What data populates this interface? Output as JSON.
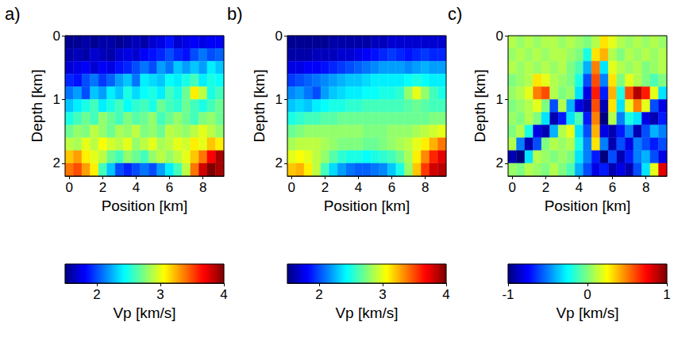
{
  "chart_data": [
    {
      "type": "heatmap",
      "title": "a)",
      "x_label": "Position [km]",
      "y_label": "Depth [km]",
      "xlim": [
        -0.25,
        9.25
      ],
      "xticks": [
        0,
        2,
        4,
        6,
        8
      ],
      "ylim": [
        0,
        2.2
      ],
      "yticks": [
        0,
        1,
        2
      ],
      "x": [
        0,
        0.5,
        1,
        1.5,
        2,
        2.5,
        3,
        3.5,
        4,
        4.5,
        5,
        5.5,
        6,
        6.5,
        7,
        7.5,
        8,
        8.5,
        9
      ],
      "y": [
        0.1,
        0.3,
        0.5,
        0.7,
        0.9,
        1.1,
        1.3,
        1.5,
        1.7,
        1.9,
        2.1
      ],
      "values": [
        [
          1.55,
          1.55,
          1.6,
          1.55,
          1.6,
          1.6,
          1.55,
          1.6,
          1.65,
          1.6,
          1.7,
          1.75,
          1.85,
          1.7,
          1.75,
          1.8,
          1.75,
          1.8,
          1.8
        ],
        [
          1.6,
          1.65,
          1.6,
          1.7,
          1.65,
          1.6,
          1.7,
          1.75,
          1.7,
          1.8,
          1.85,
          1.9,
          2.0,
          1.9,
          1.85,
          2.0,
          2.1,
          2.0,
          2.05
        ],
        [
          1.7,
          1.75,
          1.8,
          1.7,
          1.8,
          1.75,
          1.85,
          1.9,
          2.0,
          2.1,
          2.0,
          2.2,
          2.1,
          2.3,
          2.2,
          2.3,
          2.2,
          2.4,
          2.3
        ],
        [
          1.9,
          1.85,
          2.0,
          2.1,
          1.95,
          2.05,
          2.2,
          2.3,
          2.1,
          2.4,
          2.35,
          2.3,
          2.45,
          2.4,
          2.5,
          2.6,
          2.4,
          2.5,
          2.45
        ],
        [
          2.1,
          2.2,
          2.0,
          2.3,
          2.2,
          2.4,
          2.3,
          2.5,
          2.35,
          2.45,
          2.5,
          2.4,
          2.6,
          2.5,
          2.7,
          3.1,
          2.9,
          2.5,
          2.6
        ],
        [
          2.3,
          2.4,
          2.5,
          2.6,
          2.4,
          2.5,
          2.6,
          2.45,
          2.55,
          2.6,
          2.5,
          2.7,
          2.6,
          2.55,
          2.7,
          2.6,
          2.5,
          2.6,
          2.7
        ],
        [
          2.5,
          2.6,
          2.7,
          2.6,
          2.8,
          2.7,
          2.6,
          2.75,
          2.65,
          2.7,
          2.8,
          2.6,
          2.7,
          2.8,
          2.7,
          2.6,
          2.75,
          2.8,
          2.7
        ],
        [
          2.7,
          2.8,
          2.75,
          2.9,
          2.8,
          2.7,
          2.85,
          2.8,
          2.9,
          2.75,
          2.8,
          2.7,
          2.9,
          2.85,
          2.8,
          2.9,
          3.0,
          2.9,
          2.8
        ],
        [
          2.9,
          2.85,
          3.0,
          2.9,
          3.05,
          2.95,
          2.9,
          3.0,
          2.8,
          2.9,
          3.0,
          2.85,
          2.9,
          3.0,
          2.95,
          3.1,
          3.0,
          3.2,
          3.1
        ],
        [
          3.2,
          3.3,
          3.1,
          3.0,
          2.9,
          2.7,
          2.6,
          2.8,
          2.7,
          2.6,
          2.8,
          2.9,
          2.8,
          2.9,
          3.0,
          3.2,
          3.4,
          3.7,
          3.9
        ],
        [
          3.4,
          3.5,
          3.3,
          3.1,
          2.6,
          2.3,
          2.0,
          1.9,
          2.0,
          2.1,
          2.0,
          2.2,
          2.4,
          2.6,
          2.9,
          3.4,
          3.8,
          4.0,
          3.9
        ]
      ],
      "colorbar": {
        "label": "Vp [km/s]",
        "range": [
          1.5,
          4
        ],
        "ticks": [
          2,
          3,
          4
        ],
        "colors": [
          "#00007f",
          "#0000ff",
          "#007fff",
          "#00ffff",
          "#7fff7f",
          "#ffff00",
          "#ff7f00",
          "#ff0000",
          "#7f0000"
        ]
      }
    },
    {
      "type": "heatmap",
      "title": "b)",
      "x_label": "Position [km]",
      "y_label": "Depth [km]",
      "xlim": [
        -0.25,
        9.25
      ],
      "xticks": [
        0,
        2,
        4,
        6,
        8
      ],
      "ylim": [
        0,
        2.2
      ],
      "yticks": [
        0,
        1,
        2
      ],
      "x": [
        0,
        0.5,
        1,
        1.5,
        2,
        2.5,
        3,
        3.5,
        4,
        4.5,
        5,
        5.5,
        6,
        6.5,
        7,
        7.5,
        8,
        8.5,
        9
      ],
      "y": [
        0.1,
        0.3,
        0.5,
        0.7,
        0.9,
        1.1,
        1.3,
        1.5,
        1.7,
        1.9,
        2.1
      ],
      "values": [
        [
          1.55,
          1.55,
          1.55,
          1.55,
          1.55,
          1.6,
          1.6,
          1.6,
          1.6,
          1.6,
          1.65,
          1.65,
          1.7,
          1.7,
          1.7,
          1.7,
          1.7,
          1.7,
          1.7
        ],
        [
          1.6,
          1.6,
          1.6,
          1.65,
          1.65,
          1.65,
          1.7,
          1.7,
          1.75,
          1.8,
          1.85,
          1.9,
          1.95,
          1.9,
          1.85,
          1.9,
          1.95,
          1.9,
          1.9
        ],
        [
          1.75,
          1.75,
          1.8,
          1.8,
          1.85,
          1.9,
          1.95,
          2.0,
          2.05,
          2.1,
          2.15,
          2.2,
          2.2,
          2.2,
          2.15,
          2.2,
          2.25,
          2.2,
          2.2
        ],
        [
          1.95,
          2.0,
          2.05,
          2.1,
          2.15,
          2.2,
          2.25,
          2.3,
          2.3,
          2.35,
          2.4,
          2.4,
          2.4,
          2.4,
          2.45,
          2.5,
          2.45,
          2.4,
          2.4
        ],
        [
          2.15,
          2.2,
          2.1,
          2.0,
          2.2,
          2.3,
          2.35,
          2.4,
          2.4,
          2.45,
          2.45,
          2.5,
          2.5,
          2.55,
          2.8,
          3.0,
          2.8,
          2.6,
          2.5
        ],
        [
          2.3,
          2.35,
          2.3,
          2.4,
          2.45,
          2.5,
          2.5,
          2.55,
          2.55,
          2.6,
          2.6,
          2.6,
          2.6,
          2.6,
          2.65,
          2.7,
          2.65,
          2.6,
          2.6
        ],
        [
          2.5,
          2.55,
          2.6,
          2.6,
          2.65,
          2.65,
          2.7,
          2.7,
          2.7,
          2.7,
          2.7,
          2.7,
          2.7,
          2.7,
          2.7,
          2.7,
          2.7,
          2.75,
          2.75
        ],
        [
          2.7,
          2.75,
          2.8,
          2.8,
          2.8,
          2.8,
          2.8,
          2.8,
          2.8,
          2.75,
          2.75,
          2.75,
          2.8,
          2.8,
          2.8,
          2.85,
          2.9,
          2.95,
          3.0
        ],
        [
          2.85,
          2.9,
          2.9,
          2.9,
          2.85,
          2.8,
          2.75,
          2.75,
          2.75,
          2.7,
          2.7,
          2.75,
          2.8,
          2.85,
          2.9,
          3.0,
          3.1,
          3.25,
          3.4
        ],
        [
          3.0,
          3.05,
          3.0,
          2.9,
          2.8,
          2.65,
          2.55,
          2.5,
          2.5,
          2.45,
          2.5,
          2.55,
          2.6,
          2.7,
          2.85,
          3.1,
          3.35,
          3.6,
          3.75
        ],
        [
          3.2,
          3.25,
          3.1,
          2.9,
          2.6,
          2.35,
          2.2,
          2.1,
          2.05,
          2.05,
          2.1,
          2.15,
          2.3,
          2.5,
          2.8,
          3.2,
          3.55,
          3.8,
          3.85
        ]
      ],
      "colorbar": {
        "label": "Vp [km/s]",
        "range": [
          1.5,
          4
        ],
        "ticks": [
          2,
          3,
          4
        ],
        "colors": [
          "#00007f",
          "#0000ff",
          "#007fff",
          "#00ffff",
          "#7fff7f",
          "#ffff00",
          "#ff7f00",
          "#ff0000",
          "#7f0000"
        ]
      }
    },
    {
      "type": "heatmap",
      "title": "c)",
      "x_label": "Position [km]",
      "y_label": "Depth [km]",
      "xlim": [
        -0.25,
        9.25
      ],
      "xticks": [
        0,
        2,
        4,
        6,
        8
      ],
      "ylim": [
        0,
        2.2
      ],
      "yticks": [
        0,
        1,
        2
      ],
      "x": [
        0,
        0.5,
        1,
        1.5,
        2,
        2.5,
        3,
        3.5,
        4,
        4.5,
        5,
        5.5,
        6,
        6.5,
        7,
        7.5,
        8,
        8.5,
        9
      ],
      "y": [
        0.1,
        0.3,
        0.5,
        0.7,
        0.9,
        1.1,
        1.3,
        1.5,
        1.7,
        1.9,
        2.1
      ],
      "values": [
        [
          0.1,
          0.05,
          0.1,
          0.05,
          0.1,
          0.1,
          0.05,
          0.1,
          0.05,
          0,
          0.1,
          0.3,
          0.2,
          0.1,
          0.05,
          0.1,
          0.05,
          0.1,
          0.05
        ],
        [
          0.05,
          0.1,
          0.05,
          0.1,
          0.05,
          0.1,
          0.1,
          0.05,
          0,
          -0.2,
          0.3,
          0.4,
          0.1,
          0,
          0.1,
          0.05,
          0.1,
          0.05,
          0.1
        ],
        [
          0.1,
          0.05,
          0.1,
          0.05,
          0.1,
          0.05,
          0.1,
          0,
          -0.1,
          -0.4,
          0.5,
          -0.3,
          0.2,
          0.1,
          0.05,
          0.1,
          0,
          0.05,
          0.1
        ],
        [
          0,
          0.05,
          0.1,
          0.3,
          0.2,
          0.1,
          0.05,
          0,
          -0.2,
          -0.6,
          0.6,
          -0.5,
          0.3,
          0,
          0.2,
          0.1,
          0,
          -0.1,
          0
        ],
        [
          0.05,
          0.1,
          0.2,
          0.5,
          0.6,
          0.1,
          0,
          0.05,
          -0.3,
          -0.8,
          0.7,
          -0.7,
          0.4,
          -0.2,
          0.6,
          0.9,
          0.7,
          0.2,
          -0.3
        ],
        [
          0,
          0.05,
          0.1,
          0.2,
          0,
          -0.6,
          0.1,
          -0.4,
          -0.8,
          -0.9,
          0.6,
          -0.9,
          0.3,
          -0.3,
          0.2,
          0.5,
          0.2,
          -0.6,
          -0.8
        ],
        [
          0.05,
          0,
          0.1,
          0,
          -0.3,
          -0.9,
          -0.7,
          -0.3,
          -0.1,
          -0.7,
          0.5,
          -1.0,
          0.1,
          -0.5,
          -0.2,
          -0.3,
          -0.8,
          -0.9,
          -0.7
        ],
        [
          0,
          0.1,
          -0.2,
          -0.8,
          -0.9,
          -0.4,
          0.1,
          0.2,
          -0.3,
          -0.6,
          0.4,
          -0.8,
          -0.9,
          -0.7,
          -0.5,
          -0.9,
          -0.6,
          -0.4,
          -0.5
        ],
        [
          0.1,
          -0.5,
          -0.9,
          -0.6,
          0,
          0.1,
          0.05,
          0.1,
          -0.2,
          -0.5,
          0.3,
          -0.5,
          -0.9,
          -0.6,
          -0.8,
          -0.5,
          -0.6,
          -0.7,
          -0.6
        ],
        [
          -0.9,
          -1.0,
          -0.3,
          0.1,
          0.05,
          0,
          0.05,
          0,
          -0.3,
          -0.5,
          -0.7,
          -1.0,
          -0.6,
          -0.9,
          -0.7,
          -0.5,
          -0.4,
          -0.6,
          -0.8
        ],
        [
          0.05,
          0,
          0.1,
          0.05,
          0,
          0.1,
          0,
          -0.1,
          -0.4,
          -0.6,
          -0.8,
          -0.7,
          -0.9,
          -0.8,
          -0.9,
          -0.6,
          -0.3,
          0.2,
          0.8
        ]
      ],
      "colorbar": {
        "label": "Vp [km/s]",
        "range": [
          -1,
          1
        ],
        "ticks": [
          -1,
          0,
          1
        ],
        "colors": [
          "#00007f",
          "#0000ff",
          "#007fff",
          "#00ffff",
          "#7fff7f",
          "#ffff00",
          "#ff7f00",
          "#ff0000",
          "#7f0000"
        ]
      }
    }
  ]
}
